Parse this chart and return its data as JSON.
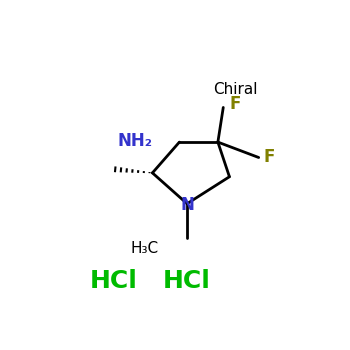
{
  "background_color": "#ffffff",
  "chiral_label": "Chiral",
  "chiral_color": "#000000",
  "chiral_fontsize": 11,
  "nh2_label": "NH₂",
  "nh2_color": "#3333cc",
  "nh2_fontsize": 12,
  "F1_label": "F",
  "F1_color": "#808000",
  "F1_fontsize": 12,
  "F2_label": "F",
  "F2_color": "#808000",
  "F2_fontsize": 12,
  "N_label": "N",
  "N_color": "#3333cc",
  "N_fontsize": 12,
  "CH3_label": "H₃C",
  "CH3_color": "#000000",
  "CH3_fontsize": 11,
  "HCl1_label": "HCl",
  "HCl1_color": "#00bb00",
  "HCl1_fontsize": 18,
  "HCl2_label": "HCl",
  "HCl2_color": "#00bb00",
  "HCl2_fontsize": 18,
  "ring_lw": 2.0,
  "wedge_n": 7
}
